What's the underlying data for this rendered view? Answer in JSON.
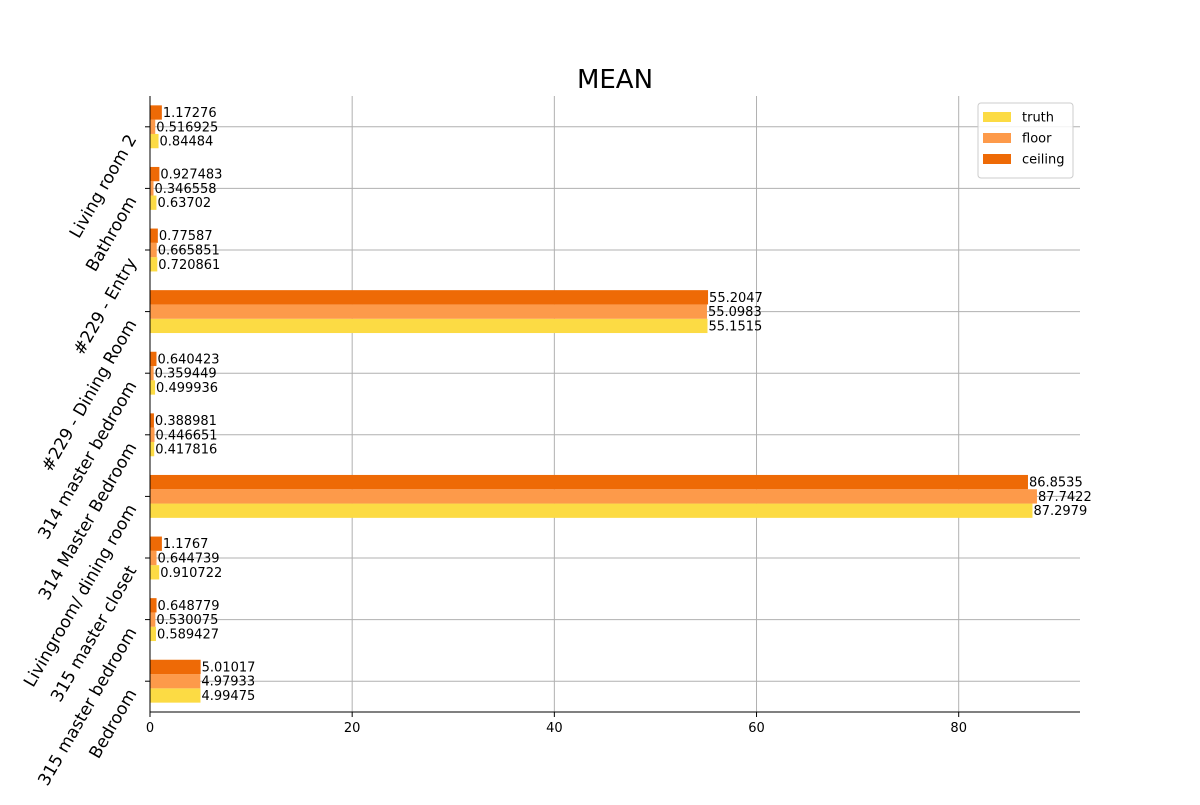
{
  "chart_data": {
    "type": "bar",
    "orientation": "horizontal",
    "title": "MEAN",
    "xlabel": "",
    "ylabel": "",
    "xlim": [
      0,
      92
    ],
    "xticks": [
      0,
      20,
      40,
      60,
      80
    ],
    "grid": true,
    "legend_position": "top-right",
    "categories": [
      "Living room 2",
      "Bathroom",
      "#229 - Entry",
      "#229 - Dining Room",
      "314 master bedroom",
      "314 Master Bedroom",
      "Livingroom/ dining room",
      "315 master closet",
      "315 master bedroom",
      "Bedroom"
    ],
    "series": [
      {
        "name": "truth",
        "color": "#fcdb44",
        "values": [
          0.84484,
          0.63702,
          0.720861,
          55.1515,
          0.499936,
          0.417816,
          87.2979,
          0.910722,
          0.589427,
          4.99475
        ],
        "labels": [
          "0.84484",
          "0.63702",
          "0.720861",
          "55.1515",
          "0.499936",
          "0.417816",
          "87.2979",
          "0.910722",
          "0.589427",
          "4.99475"
        ]
      },
      {
        "name": "floor",
        "color": "#fd9a4a",
        "values": [
          0.516925,
          0.346558,
          0.665851,
          55.0983,
          0.359449,
          0.446651,
          87.7422,
          0.644739,
          0.530075,
          4.97933
        ],
        "labels": [
          "0.516925",
          "0.346558",
          "0.665851",
          "55.0983",
          "0.359449",
          "0.446651",
          "87.7422",
          "0.644739",
          "0.530075",
          "4.97933"
        ]
      },
      {
        "name": "ceiling",
        "color": "#ee6a06",
        "values": [
          1.17276,
          0.927483,
          0.77587,
          55.2047,
          0.640423,
          0.388981,
          86.8535,
          1.1767,
          0.648779,
          5.01017
        ],
        "labels": [
          "1.17276",
          "0.927483",
          "0.77587",
          "55.2047",
          "0.640423",
          "0.388981",
          "86.8535",
          "1.1767",
          "0.648779",
          "5.01017"
        ]
      }
    ]
  }
}
